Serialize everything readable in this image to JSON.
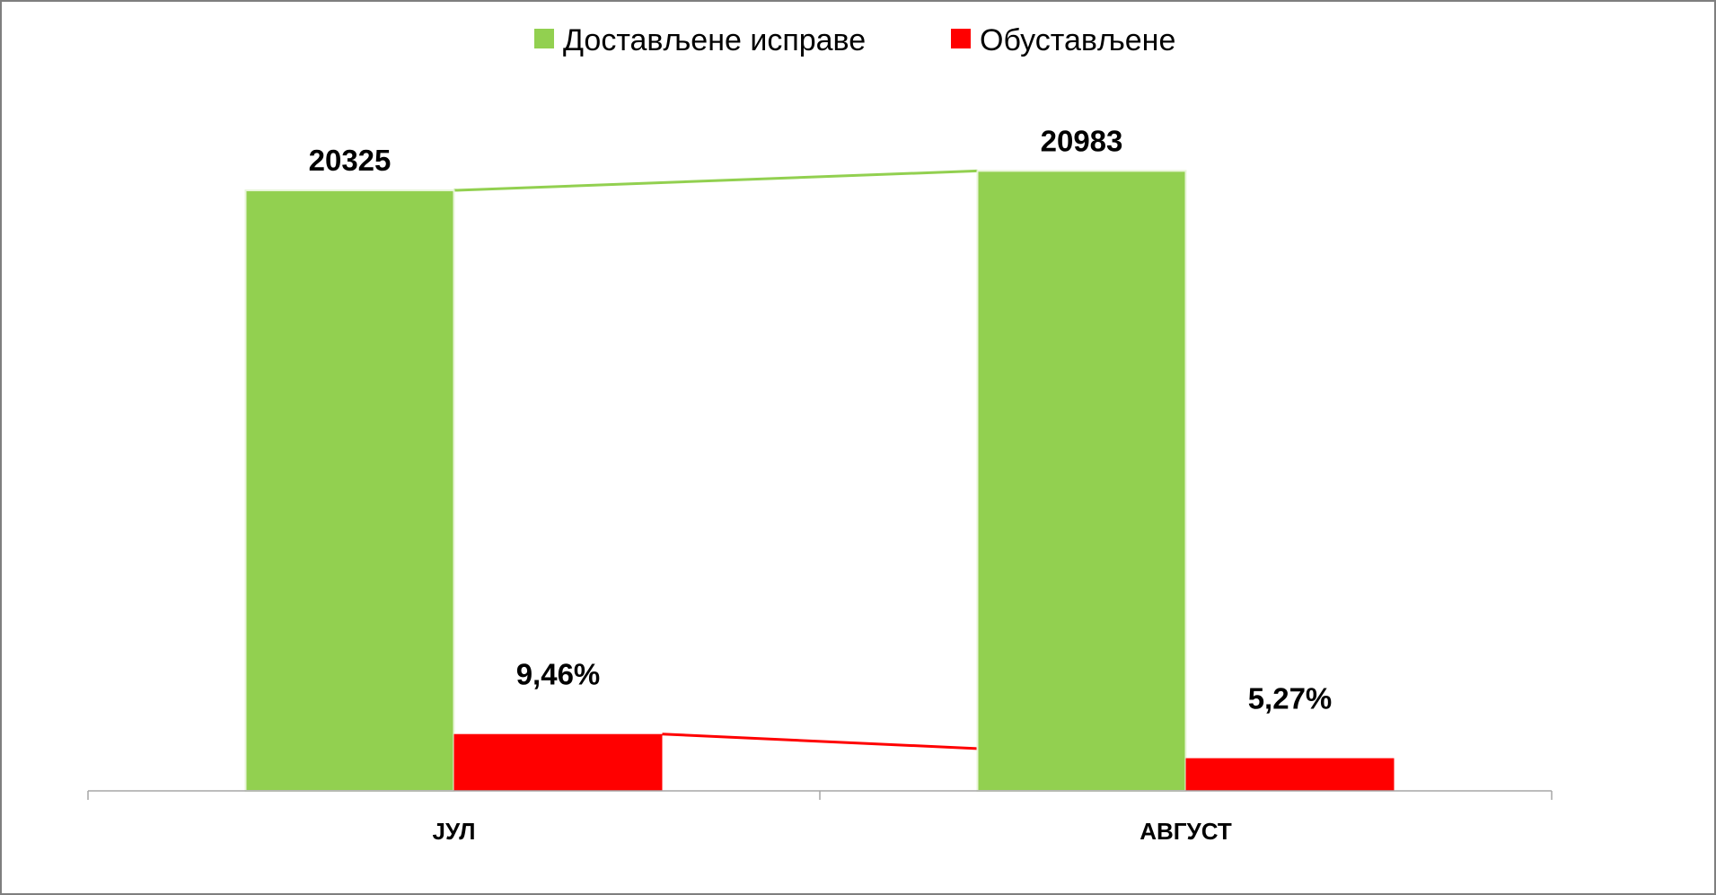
{
  "chart_data": {
    "type": "bar",
    "categories": [
      "ЈУЛ",
      "АВГУСТ"
    ],
    "series": [
      {
        "name": "Достављене исправе",
        "values": [
          20325,
          20983
        ],
        "labels": [
          "20325",
          "20983"
        ],
        "color": "#92d050"
      },
      {
        "name": "Обустављене",
        "values": [
          1923,
          1106
        ],
        "labels": [
          "9,46%",
          "5,27%"
        ],
        "color": "#ff0000"
      }
    ],
    "ylim": [
      0,
      23000
    ],
    "grid": false,
    "legend_position": "top",
    "series_lines": true
  }
}
